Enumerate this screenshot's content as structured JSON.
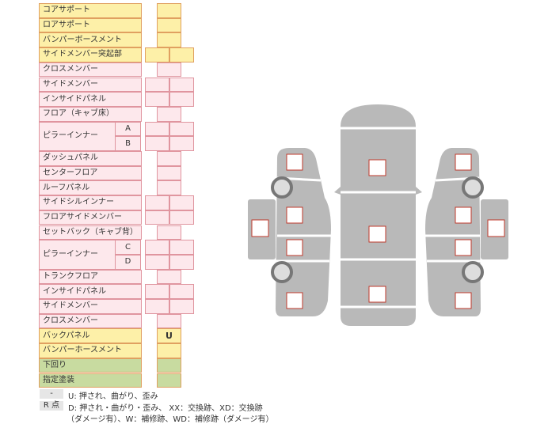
{
  "table": {
    "rows": [
      {
        "label": "コアサポート"
      },
      {
        "label": "ロアサポート"
      },
      {
        "label": "バンパーボースメント"
      },
      {
        "label": "サイドメンバー突起部"
      },
      {
        "label": "クロスメンバー"
      },
      {
        "label": "サイドメンバー"
      },
      {
        "label": "インサイドパネル"
      },
      {
        "label": "フロア（キャブ床）"
      },
      {
        "label": "ピラーインナー",
        "sub": [
          "A",
          "B"
        ]
      },
      {
        "label": "ダッシュパネル"
      },
      {
        "label": "センターフロア"
      },
      {
        "label": "ルーフパネル"
      },
      {
        "label": "サイドシルインナー"
      },
      {
        "label": "フロアサイドメンバー"
      },
      {
        "label": "セットバック（キャブ背）"
      },
      {
        "label": "ピラーインナー",
        "sub": [
          "C",
          "D"
        ]
      },
      {
        "label": "トランクフロア"
      },
      {
        "label": "インサイドパネル"
      },
      {
        "label": "サイドメンバー"
      },
      {
        "label": "クロスメンバー"
      },
      {
        "label": "バックパネル",
        "value": "U"
      },
      {
        "label": "バンパーホースメント"
      },
      {
        "label": "下回り"
      },
      {
        "label": "指定塗装"
      }
    ]
  },
  "legend": [
    {
      "key": "-",
      "lines": [
        "U: 押され、曲がり、歪み"
      ]
    },
    {
      "key": "R 点",
      "lines": [
        "D: 押され・曲がり・歪み、 XX：交換跡、XD：交換跡",
        "（ダメージ有）、W：補修跡、WD：補修跡（ダメージ有）"
      ]
    }
  ]
}
